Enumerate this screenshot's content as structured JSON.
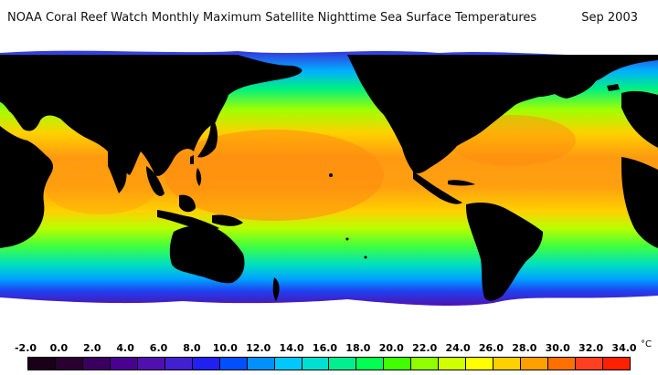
{
  "title": {
    "main": "NOAA Coral Reef Watch Monthly Maximum Satellite Nighttime Sea Surface Temperatures",
    "date": "Sep 2003"
  },
  "legend": {
    "unit": "°C",
    "ticks": [
      "-2.0",
      "0.0",
      "2.0",
      "4.0",
      "6.0",
      "8.0",
      "10.0",
      "12.0",
      "14.0",
      "16.0",
      "18.0",
      "20.0",
      "22.0",
      "24.0",
      "26.0",
      "28.0",
      "30.0",
      "32.0",
      "34.0"
    ],
    "colors": [
      "#1a0018",
      "#2a0030",
      "#3a0060",
      "#4a0090",
      "#5010b0",
      "#4020d0",
      "#2020f0",
      "#0050ff",
      "#0090ff",
      "#00c8ff",
      "#00e0d0",
      "#00f090",
      "#00ff50",
      "#40ff00",
      "#90ff00",
      "#d0ff00",
      "#ffff00",
      "#ffd000",
      "#ffa000",
      "#ff7000",
      "#ff4020",
      "#ff2000"
    ]
  },
  "map": {
    "ocean_colors": {
      "polar": "#5a10b0",
      "subpolar": "#1030f0",
      "cold": "#00c0ff",
      "temperate": "#00f080",
      "warm": "#b8ff00",
      "tropical": "#ffa000",
      "hot": "#ff7010",
      "land": "#000000",
      "ice": "#ffffff"
    },
    "labels": []
  }
}
